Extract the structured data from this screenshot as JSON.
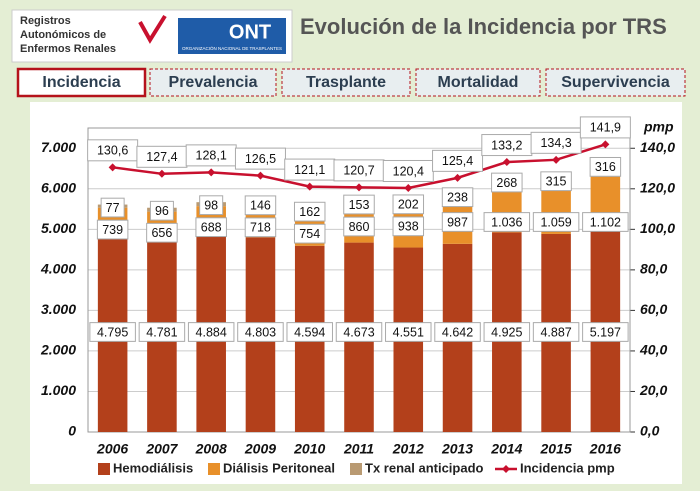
{
  "header": {
    "registry": [
      "Registros",
      "Autonómicos de",
      "Enfermos Renales"
    ],
    "logo_text": "ONT",
    "logo_subtitle": "ORGANIZACIÓN NACIONAL DE TRASPLANTES"
  },
  "tabs": [
    "Incidencia",
    "Prevalencia",
    "Trasplante",
    "Mortalidad",
    "Supervivencia"
  ],
  "chart_data": {
    "type": "stacked-bar-line",
    "title": "Evolución de la Incidencia por TRS",
    "categories": [
      "2006",
      "2007",
      "2008",
      "2009",
      "2010",
      "2011",
      "2012",
      "2013",
      "2014",
      "2015",
      "2016"
    ],
    "series": [
      {
        "name": "Hemodiálisis",
        "color": "#b3401b",
        "values": [
          4795,
          4781,
          4884,
          4803,
          4594,
          4673,
          4551,
          4642,
          4925,
          4887,
          5197
        ],
        "value_labels": [
          "4.795",
          "4.781",
          "4.884",
          "4.803",
          "4.594",
          "4.673",
          "4.551",
          "4.642",
          "4.925",
          "4.887",
          "5.197"
        ]
      },
      {
        "name": "Diálisis Peritoneal",
        "color": "#e8902a",
        "values": [
          739,
          656,
          688,
          718,
          754,
          860,
          938,
          987,
          1036,
          1059,
          1102
        ],
        "value_labels": [
          "739",
          "656",
          "688",
          "718",
          "754",
          "860",
          "938",
          "987",
          "1.036",
          "1.059",
          "1.102"
        ]
      },
      {
        "name": "Tx renal anticipado",
        "color": "#b99a72",
        "values": [
          77,
          96,
          98,
          146,
          162,
          153,
          202,
          238,
          268,
          315,
          316
        ]
      },
      {
        "name": "Incidencia pmp",
        "color": "#c8102e",
        "axis": "y2",
        "values": [
          130.6,
          127.4,
          128.1,
          126.5,
          121.1,
          120.7,
          120.4,
          125.4,
          133.2,
          134.3,
          141.9
        ],
        "value_labels": [
          "130,6",
          "127,4",
          "128,1",
          "126,5",
          "121,1",
          "120,7",
          "120,4",
          "125,4",
          "133,2",
          "134,3",
          "141,9"
        ]
      }
    ],
    "ylim": [
      0,
      7500
    ],
    "yticks": [
      0,
      {
        "value": 1000,
        "label": "1.000"
      },
      {
        "value": 2000,
        "label": "2.000"
      },
      {
        "value": 3000,
        "label": "3.000"
      },
      {
        "value": 4000,
        "label": "4.000"
      },
      {
        "value": 5000,
        "label": "5.000"
      },
      {
        "value": 6000,
        "label": "6.000"
      },
      {
        "value": 7000,
        "label": "7.000"
      }
    ],
    "y2lim": [
      0,
      150
    ],
    "y2label": "pmp",
    "y2ticks": [
      {
        "value": 0,
        "label": "0,0"
      },
      {
        "value": 20,
        "label": "20,0"
      },
      {
        "value": 40,
        "label": "40,0"
      },
      {
        "value": 60,
        "label": "60,0"
      },
      {
        "value": 80,
        "label": "80,0"
      },
      {
        "value": 100,
        "label": "100,0"
      },
      {
        "value": 120,
        "label": "120,0"
      },
      {
        "value": 140,
        "label": "140,0"
      }
    ],
    "grid": true,
    "legend": "bottom"
  }
}
